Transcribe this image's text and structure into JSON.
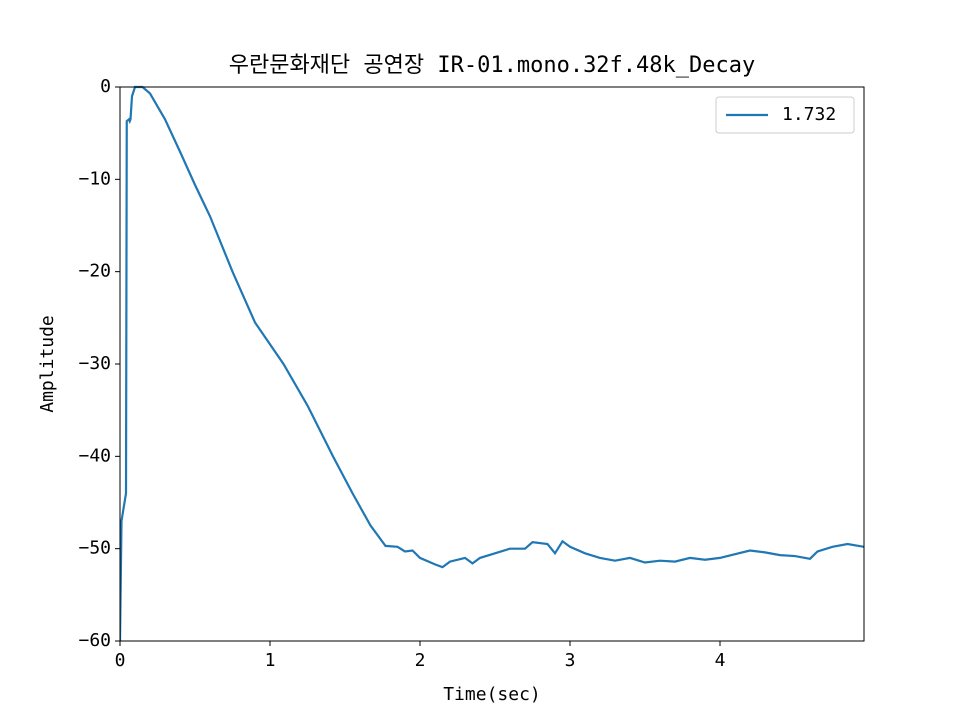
{
  "chart_data": {
    "type": "line",
    "title": "우란문화재단 공연장 IR-01.mono.32f.48k_Decay",
    "x_label": "Time(sec)",
    "y_label": "Amplitude",
    "x": [
      0,
      0.01,
      0.04,
      0.045,
      0.06,
      0.065,
      0.07,
      0.08,
      0.1,
      0.15,
      0.2,
      0.3,
      0.4,
      0.5,
      0.6,
      0.75,
      0.9,
      1.09,
      1.25,
      1.42,
      1.55,
      1.67,
      1.77,
      1.85,
      1.9,
      1.95,
      2.0,
      2.1,
      2.15,
      2.2,
      2.3,
      2.35,
      2.4,
      2.5,
      2.6,
      2.7,
      2.75,
      2.85,
      2.9,
      2.95,
      3.0,
      3.1,
      3.2,
      3.3,
      3.4,
      3.5,
      3.6,
      3.7,
      3.8,
      3.9,
      4.0,
      4.1,
      4.2,
      4.3,
      4.4,
      4.5,
      4.6,
      4.65,
      4.75,
      4.85,
      4.96
    ],
    "series": [
      {
        "name": "1.732",
        "color": "#1f77b4",
        "values": [
          -60,
          -47,
          -44,
          -3.7,
          -3.5,
          -3.7,
          -3.5,
          -1,
          0,
          0,
          -0.7,
          -3.5,
          -7,
          -10.6,
          -14,
          -20,
          -25.5,
          -30,
          -34.5,
          -40,
          -44,
          -47.5,
          -49.7,
          -49.8,
          -50.3,
          -50.2,
          -51,
          -51.7,
          -52,
          -51.4,
          -51,
          -51.6,
          -51,
          -50.5,
          -50,
          -50,
          -49.3,
          -49.5,
          -50.5,
          -49.2,
          -49.8,
          -50.5,
          -51,
          -51.3,
          -51,
          -51.5,
          -51.3,
          -51.4,
          -51,
          -51.2,
          -51,
          -50.6,
          -50.2,
          -50.4,
          -50.7,
          -50.8,
          -51.1,
          -50.3,
          -49.8,
          -49.5,
          -49.8
        ]
      }
    ],
    "xlim": [
      0,
      4.96
    ],
    "xticks": [
      0,
      1,
      2,
      3,
      4
    ],
    "ylim": [
      -60,
      0
    ],
    "yticks": [
      {
        "value": -60,
        "label": "−60"
      },
      {
        "value": -50,
        "label": "−50"
      },
      {
        "value": -40,
        "label": "−40"
      },
      {
        "value": -30,
        "label": "−30"
      },
      {
        "value": -20,
        "label": "−20"
      },
      {
        "value": -10,
        "label": "−10"
      },
      0
    ],
    "legend": "upper right",
    "grid": false
  }
}
